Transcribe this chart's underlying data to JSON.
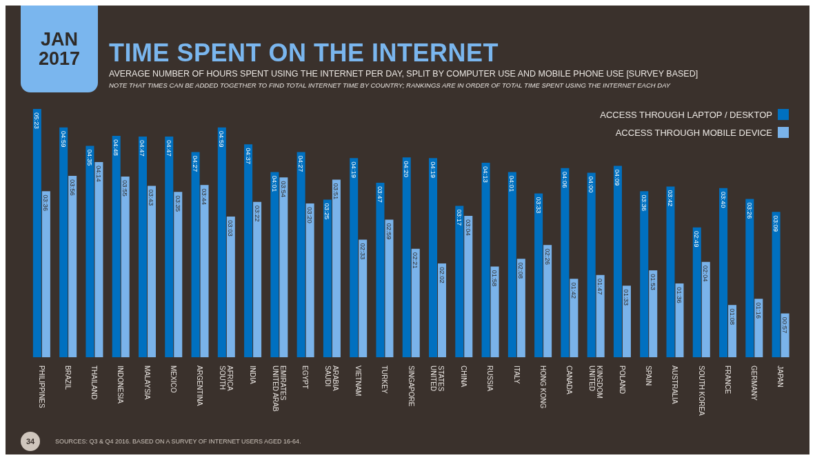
{
  "chart_data": {
    "type": "bar",
    "title": "TIME SPENT ON THE INTERNET",
    "subtitle": "AVERAGE NUMBER OF HOURS SPENT USING THE INTERNET PER DAY, SPLIT BY COMPUTER USE AND MOBILE PHONE USE [SURVEY BASED]",
    "annotations": [
      "JAN 2017",
      "NOTE THAT TIMES CAN BE ADDED TOGETHER TO FIND TOTAL INTERNET TIME BY COUNTRY; RANKINGS ARE IN ORDER OF TOTAL TIME SPENT USING THE INTERNET EACH DAY",
      "SOURCES: Q3 & Q4 2016. BASED ON A SURVEY OF INTERNET USERS AGED 16-64.",
      "34"
    ],
    "categories": [
      "PHILIPPINES",
      "BRAZIL",
      "THAILAND",
      "INDONESIA",
      "MALAYSIA",
      "MEXICO",
      "ARGENTINA",
      "SOUTH AFRICA",
      "INDIA",
      "UNITED ARAB EMIRATES",
      "EGYPT",
      "SAUDI ARABIA",
      "VIETNAM",
      "TURKEY",
      "SINGAPORE",
      "UNITED STATES",
      "CHINA",
      "RUSSIA",
      "ITALY",
      "HONG KONG",
      "CANADA",
      "UNITED KINGDOM",
      "POLAND",
      "SPAIN",
      "AUSTRALIA",
      "SOUTH KOREA",
      "FRANCE",
      "GERMANY",
      "JAPAN"
    ],
    "series": [
      {
        "name": "ACCESS THROUGH LAPTOP / DESKTOP",
        "color": "#0070c0",
        "values": [
          5.3833,
          4.9833,
          4.5833,
          4.8,
          4.7833,
          4.7833,
          4.45,
          4.9833,
          4.6167,
          4.0167,
          4.45,
          3.4167,
          4.3167,
          3.7833,
          4.3333,
          4.3167,
          3.2833,
          4.2167,
          4.0167,
          3.55,
          4.1,
          4,
          4.15,
          3.6,
          3.7,
          2.8167,
          3.6667,
          3.4333,
          3.15
        ],
        "value_labels": [
          "05:23",
          "04:59",
          "04:35",
          "04:48",
          "04:47",
          "04:47",
          "04:27",
          "04:59",
          "04:37",
          "04:01",
          "04:27",
          "03:25",
          "04:19",
          "03:47",
          "04:20",
          "04:19",
          "03:17",
          "04:13",
          "04:01",
          "03:33",
          "04:06",
          "04:00",
          "04:09",
          "03:36",
          "03:42",
          "02:49",
          "03:40",
          "03:26",
          "03:09"
        ]
      },
      {
        "name": "ACCESS THROUGH MOBILE DEVICE",
        "color": "#7ab3ea",
        "values": [
          3.6,
          3.9333,
          4.2333,
          3.9167,
          3.7167,
          3.5833,
          3.7333,
          3.05,
          3.3667,
          3.9,
          3.3333,
          3.85,
          2.55,
          2.9833,
          2.35,
          2.0333,
          3.0667,
          1.9667,
          2.1333,
          2.4333,
          1.7,
          1.7833,
          1.55,
          1.8833,
          1.6,
          2.0667,
          1.1333,
          1.2667,
          0.95
        ],
        "value_labels": [
          "03:36",
          "03:56",
          "04:14",
          "03:55",
          "03:43",
          "03:35",
          "03:44",
          "03:03",
          "03:22",
          "03:54",
          "03:20",
          "03:51",
          "02:33",
          "02:59",
          "02:21",
          "02:02",
          "03:04",
          "01:58",
          "02:08",
          "02:26",
          "01:42",
          "01:47",
          "01:33",
          "01:53",
          "01:36",
          "02:04",
          "01:08",
          "01:16",
          "00:57"
        ]
      }
    ],
    "legend": "top right"
  }
}
